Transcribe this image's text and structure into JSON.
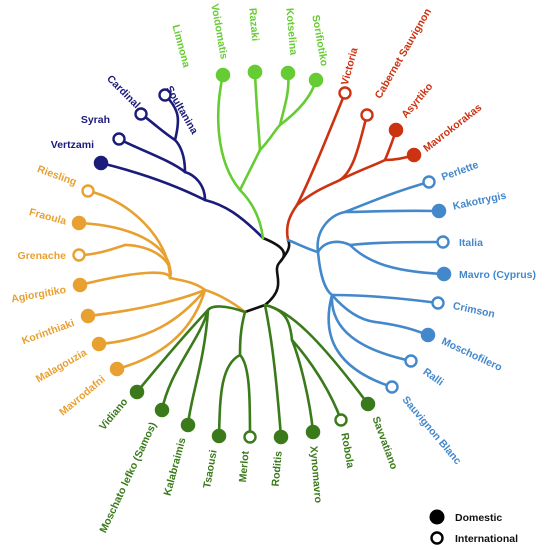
{
  "legend": {
    "domestic": "Domestic",
    "international": "International"
  },
  "colors": {
    "navy": "#1b1b7a",
    "lightgreen": "#66cc33",
    "red": "#cc3311",
    "blue": "#4488cc",
    "orange": "#e8a030",
    "darkgreen": "#3a7a1a",
    "trunk": "#111111"
  },
  "clades": {
    "navy": [
      "Soultanina",
      "Cardinal",
      "Syrah",
      "Vertzami"
    ],
    "lightgreen": [
      "Limnona",
      "Voidomatis",
      "Razaki",
      "Kotselina",
      "Sorifiotiko"
    ],
    "red": [
      "Victoria",
      "Cabernet Sauvignon",
      "Asyrtiko",
      "Mavrokorakas"
    ],
    "blue": [
      "Perlette",
      "Kakotrygis",
      "Italia",
      "Mavro (Cyprus)",
      "Crimson",
      "Moschofilero",
      "Ralli",
      "Sauvignon Blanc"
    ],
    "orange": [
      "Riesling",
      "Fraoula",
      "Grenache",
      "Agiorgitiko",
      "Korinthiaki",
      "Malagouzia",
      "Mavrodafni"
    ],
    "darkgreen": [
      "Vidiano",
      "Moschato lefko (Samos)",
      "Kalabraimis",
      "Tsaousi",
      "Merlot",
      "Roditis",
      "Xynomavro",
      "Robola",
      "Savvatiano"
    ]
  },
  "origin": {
    "Soultanina": "International",
    "Cardinal": "International",
    "Syrah": "International",
    "Vertzami": "Domestic",
    "Limnona": "Domestic",
    "Voidomatis": "Domestic",
    "Razaki": "Domestic",
    "Kotselina": "Domestic",
    "Sorifiotiko": "Domestic",
    "Victoria": "International",
    "Cabernet Sauvignon": "International",
    "Asyrtiko": "Domestic",
    "Mavrokorakas": "Domestic",
    "Perlette": "International",
    "Kakotrygis": "Domestic",
    "Italia": "International",
    "Mavro (Cyprus)": "Domestic",
    "Crimson": "International",
    "Moschofilero": "Domestic",
    "Ralli": "International",
    "Sauvignon Blanc": "International",
    "Riesling": "International",
    "Fraoula": "Domestic",
    "Grenache": "International",
    "Agiorgitiko": "Domestic",
    "Korinthiaki": "Domestic",
    "Malagouzia": "Domestic",
    "Mavrodafni": "Domestic",
    "Vidiano": "Domestic",
    "Moschato lefko (Samos)": "Domestic",
    "Kalabraimis": "Domestic",
    "Tsaousi": "Domestic",
    "Merlot": "International",
    "Roditis": "Domestic",
    "Xynomavro": "Domestic",
    "Robola": "International",
    "Savvatiano": "Domestic"
  }
}
